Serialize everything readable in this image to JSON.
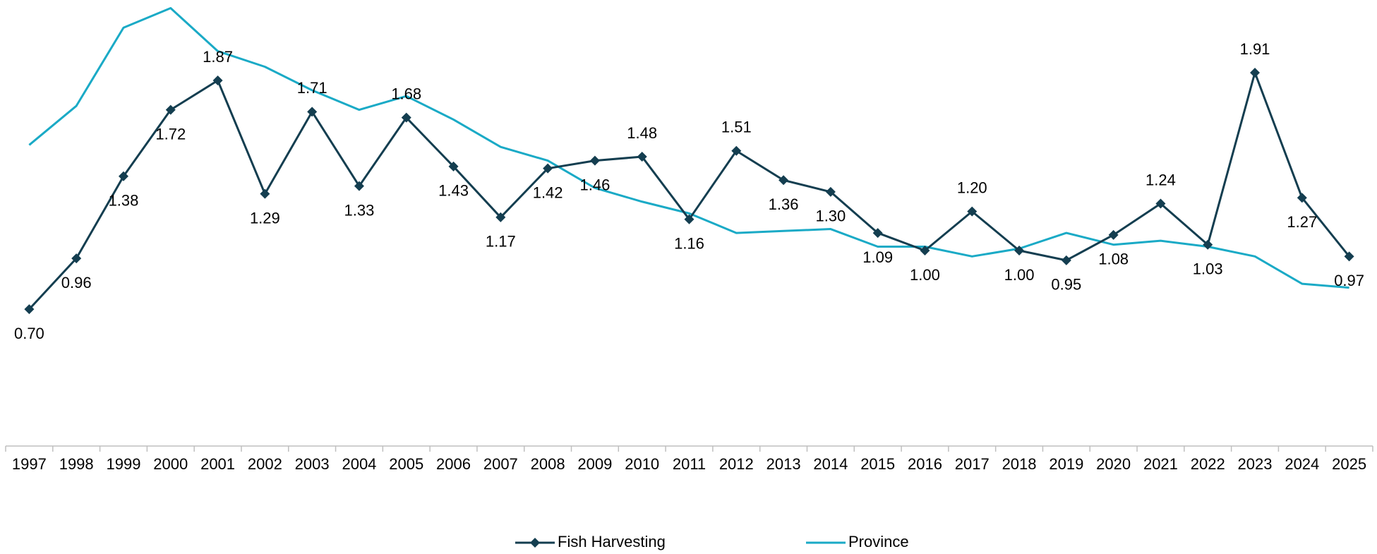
{
  "chart_data": {
    "type": "line",
    "categories": [
      "1997",
      "1998",
      "1999",
      "2000",
      "2001",
      "2002",
      "2003",
      "2004",
      "2005",
      "2006",
      "2007",
      "2008",
      "2009",
      "2010",
      "2011",
      "2012",
      "2013",
      "2014",
      "2015",
      "2016",
      "2017",
      "2018",
      "2019",
      "2020",
      "2021",
      "2022",
      "2023",
      "2024",
      "2025"
    ],
    "series": [
      {
        "name": "Fish Harvesting",
        "color": "#143e50",
        "marker": "diamond",
        "values": [
          0.7,
          0.96,
          1.38,
          1.72,
          1.87,
          1.29,
          1.71,
          1.33,
          1.68,
          1.43,
          1.17,
          1.42,
          1.46,
          1.48,
          1.16,
          1.51,
          1.36,
          1.3,
          1.09,
          1.0,
          1.2,
          1.0,
          0.95,
          1.08,
          1.24,
          1.03,
          1.91,
          1.27,
          0.97
        ],
        "value_labels": [
          "0.70",
          "0.96",
          "1.38",
          "1.72",
          "1.87",
          "1.29",
          "1.71",
          "1.33",
          "1.68",
          "1.43",
          "1.17",
          "1.42",
          "1.46",
          "1.48",
          "1.16",
          "1.51",
          "1.36",
          "1.30",
          "1.09",
          "1.00",
          "1.20",
          "1.00",
          "0.95",
          "1.08",
          "1.24",
          "1.03",
          "1.91",
          "1.27",
          "0.97"
        ]
      },
      {
        "name": "Province",
        "color": "#1aaac6",
        "values": [
          1.54,
          1.74,
          2.14,
          2.24,
          2.02,
          1.94,
          1.82,
          1.72,
          1.79,
          1.67,
          1.53,
          1.46,
          1.32,
          1.25,
          1.19,
          1.09,
          1.1,
          1.11,
          1.02,
          1.02,
          0.97,
          1.01,
          1.09,
          1.03,
          1.05,
          1.02,
          0.97,
          0.83,
          0.81
        ]
      }
    ],
    "ylim": [
      0,
      2.26
    ],
    "grid": false,
    "legend": "bottom"
  }
}
